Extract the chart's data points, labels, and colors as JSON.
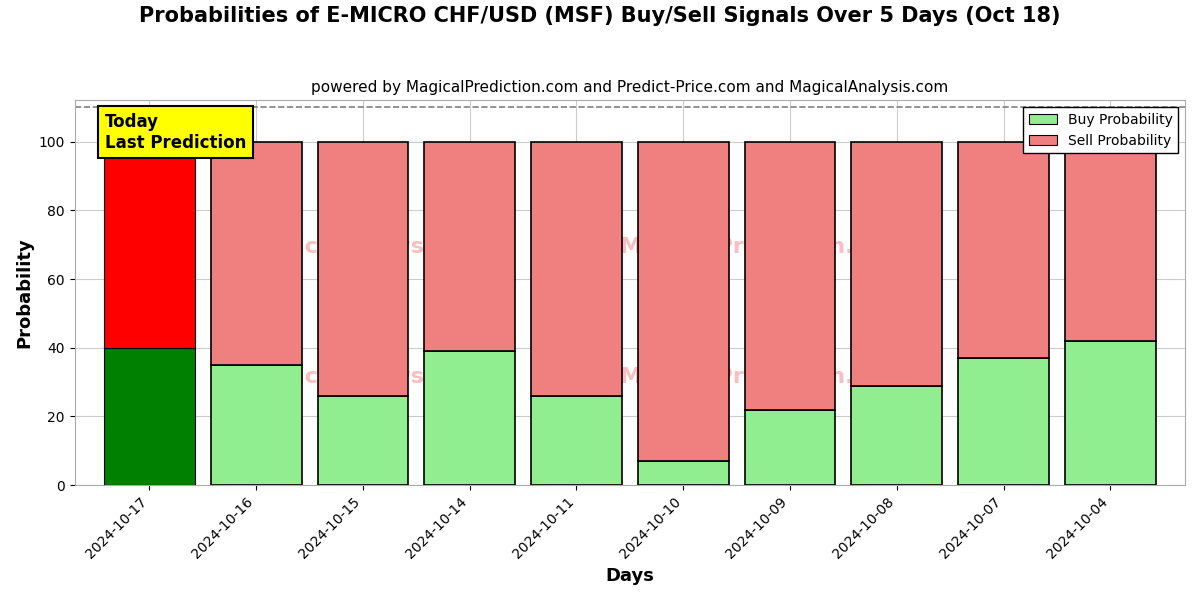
{
  "title": "Probabilities of E-MICRO CHF/USD (MSF) Buy/Sell Signals Over 5 Days (Oct 18)",
  "subtitle": "powered by MagicalPrediction.com and Predict-Price.com and MagicalAnalysis.com",
  "xlabel": "Days",
  "ylabel": "Probability",
  "dates": [
    "2024-10-17",
    "2024-10-16",
    "2024-10-15",
    "2024-10-14",
    "2024-10-11",
    "2024-10-10",
    "2024-10-09",
    "2024-10-08",
    "2024-10-07",
    "2024-10-04"
  ],
  "buy_values": [
    40,
    35,
    26,
    39,
    26,
    7,
    22,
    29,
    37,
    42
  ],
  "sell_values": [
    60,
    65,
    74,
    61,
    74,
    93,
    78,
    71,
    63,
    58
  ],
  "today_bar_buy_color": "#008000",
  "today_bar_sell_color": "#ff0000",
  "other_bar_buy_color": "#90EE90",
  "other_bar_sell_color": "#F08080",
  "bar_edge_color": "#000000",
  "bar_width": 0.85,
  "ylim": [
    0,
    112
  ],
  "yticks": [
    0,
    20,
    40,
    60,
    80,
    100
  ],
  "dashed_line_y": 110,
  "today_label": "Today\nLast Prediction",
  "today_label_bg": "#ffff00",
  "legend_buy_color": "#90EE90",
  "legend_sell_color": "#F08080",
  "legend_buy_label": "Buy Probability",
  "legend_sell_label": "Sell Probability",
  "title_fontsize": 15,
  "subtitle_fontsize": 11,
  "axis_label_fontsize": 13,
  "tick_fontsize": 10,
  "grid_color": "#cccccc",
  "bg_color": "#ffffff",
  "fig_width": 12,
  "fig_height": 6
}
